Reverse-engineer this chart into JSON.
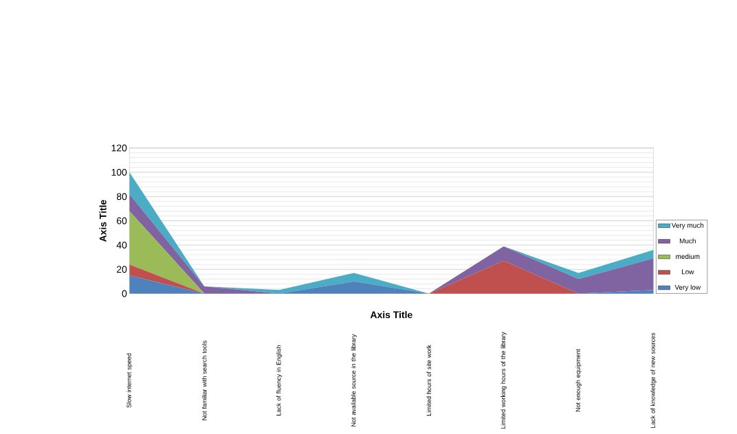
{
  "chart_data": {
    "type": "area",
    "stacked": true,
    "xlabel": "Axis Title",
    "ylabel": "Axis Title",
    "categories": [
      "Slow internet speed",
      "Not familiar with search tools",
      "Lack of fluency in English",
      "Not available source in the library",
      "Limited hours of site work",
      "Limited working hours of the library",
      "Not enough equipment",
      "Lack of knowledge of new sources"
    ],
    "series": [
      {
        "name": "Very low",
        "color": "#4f81bd",
        "values": [
          15,
          0,
          0,
          10,
          0,
          0,
          0,
          3
        ]
      },
      {
        "name": "Low",
        "color": "#c0504d",
        "values": [
          9,
          0,
          0,
          0,
          0,
          27,
          0,
          0
        ]
      },
      {
        "name": "medium",
        "color": "#9bbb59",
        "values": [
          44,
          0,
          0,
          0,
          0,
          0,
          0,
          0
        ]
      },
      {
        "name": "Much",
        "color": "#8064a2",
        "values": [
          14,
          6,
          0,
          0,
          0,
          12,
          12,
          26
        ]
      },
      {
        "name": "Very much",
        "color": "#4bacc6",
        "values": [
          18,
          0,
          3,
          7,
          0,
          0,
          5,
          7
        ]
      }
    ],
    "ylim": [
      0,
      120
    ],
    "yticks": [
      0,
      20,
      40,
      60,
      80,
      100,
      120
    ],
    "grid": "y",
    "legend": "right"
  }
}
